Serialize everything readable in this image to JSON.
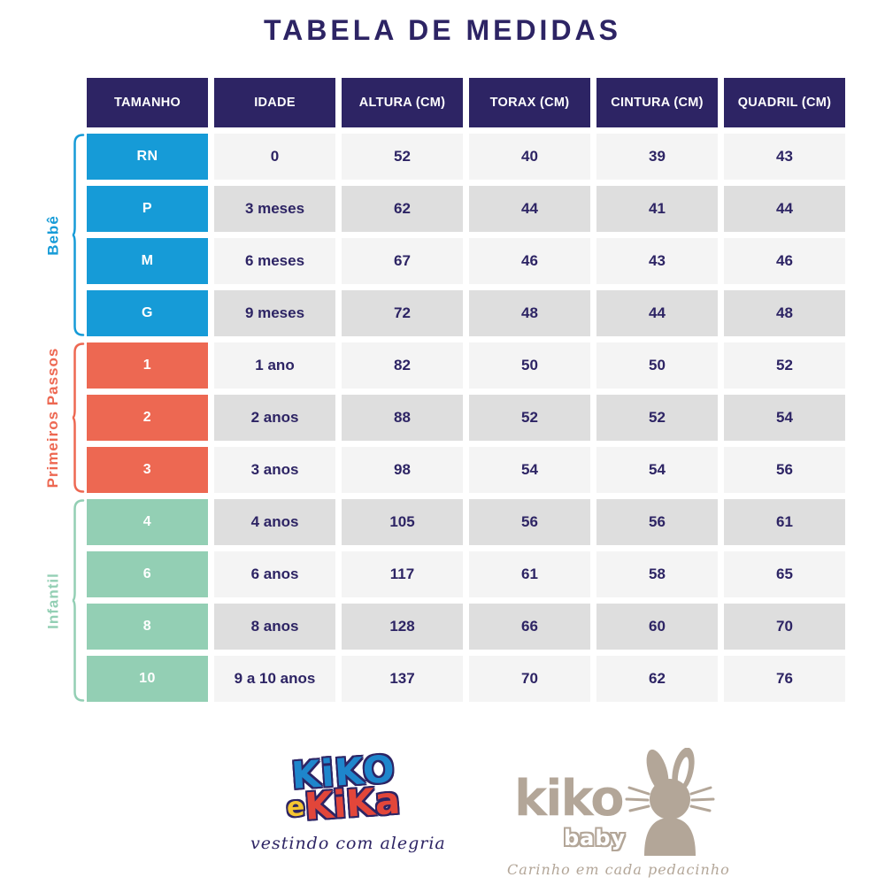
{
  "title": "TABELA DE MEDIDAS",
  "colors": {
    "navy": "#2d2464",
    "blue": "#169bd7",
    "coral": "#ed6852",
    "mint": "#93cfb4",
    "row_light": "#f4f4f4",
    "row_dark": "#dedede",
    "kk_blue": "#1e86cc",
    "kk_yellow": "#f5c531",
    "kk_red": "#e2463a",
    "logo_taupe": "#b3a698"
  },
  "table": {
    "headers": [
      "TAMANHO",
      "IDADE",
      "ALTURA (CM)",
      "TORAX (CM)",
      "CINTURA (CM)",
      "QUADRIL (CM)"
    ],
    "groups": [
      {
        "label": "Bebê",
        "color_key": "blue",
        "rows": [
          {
            "size": "RN",
            "idade": "0",
            "altura": "52",
            "torax": "40",
            "cintura": "39",
            "quadril": "43"
          },
          {
            "size": "P",
            "idade": "3 meses",
            "altura": "62",
            "torax": "44",
            "cintura": "41",
            "quadril": "44"
          },
          {
            "size": "M",
            "idade": "6 meses",
            "altura": "67",
            "torax": "46",
            "cintura": "43",
            "quadril": "46"
          },
          {
            "size": "G",
            "idade": "9 meses",
            "altura": "72",
            "torax": "48",
            "cintura": "44",
            "quadril": "48"
          }
        ]
      },
      {
        "label": "Primeiros Passos",
        "color_key": "coral",
        "rows": [
          {
            "size": "1",
            "idade": "1 ano",
            "altura": "82",
            "torax": "50",
            "cintura": "50",
            "quadril": "52"
          },
          {
            "size": "2",
            "idade": "2 anos",
            "altura": "88",
            "torax": "52",
            "cintura": "52",
            "quadril": "54"
          },
          {
            "size": "3",
            "idade": "3 anos",
            "altura": "98",
            "torax": "54",
            "cintura": "54",
            "quadril": "56"
          }
        ]
      },
      {
        "label": "Infantil",
        "color_key": "mint",
        "rows": [
          {
            "size": "4",
            "idade": "4 anos",
            "altura": "105",
            "torax": "56",
            "cintura": "56",
            "quadril": "61"
          },
          {
            "size": "6",
            "idade": "6 anos",
            "altura": "117",
            "torax": "61",
            "cintura": "58",
            "quadril": "65"
          },
          {
            "size": "8",
            "idade": "8 anos",
            "altura": "128",
            "torax": "66",
            "cintura": "60",
            "quadril": "70"
          },
          {
            "size": "10",
            "idade": "9 a 10 anos",
            "altura": "137",
            "torax": "70",
            "cintura": "62",
            "quadril": "76"
          }
        ]
      }
    ]
  },
  "footer": {
    "logo_left": {
      "line1": "KiKO",
      "line2_e": "e",
      "line2": "KiKa",
      "tagline": "vestindo com alegria"
    },
    "logo_right": {
      "name": "kiko",
      "sub": "baby",
      "tagline": "Carinho em cada pedacinho"
    }
  }
}
